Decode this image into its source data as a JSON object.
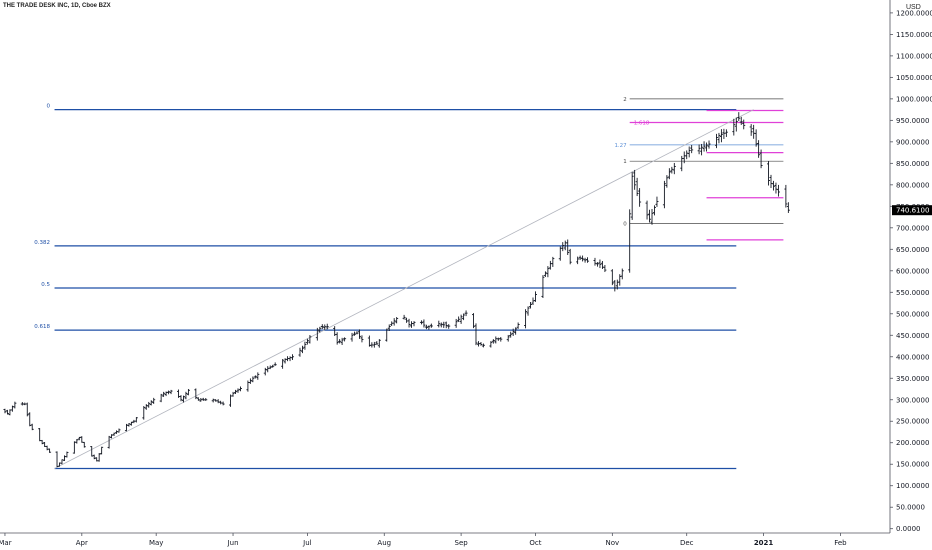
{
  "chart_data": {
    "type": "bar",
    "subtype": "ohlc",
    "title": "THE TRADE DESK INC, 1D, Cboe BZX",
    "currency": "USD",
    "last_price": "740.6100",
    "last_price_color": "#000000",
    "ylim": [
      -10,
      1230
    ],
    "y_ticks": [
      {
        "value": 0,
        "label": "0.0000"
      },
      {
        "value": 50,
        "label": "50.0000"
      },
      {
        "value": 100,
        "label": "100.0000"
      },
      {
        "value": 150,
        "label": "150.0000"
      },
      {
        "value": 200,
        "label": "200.0000"
      },
      {
        "value": 250,
        "label": "250.0000"
      },
      {
        "value": 300,
        "label": "300.0000"
      },
      {
        "value": 350,
        "label": "350.0000"
      },
      {
        "value": 400,
        "label": "400.0000"
      },
      {
        "value": 450,
        "label": "450.0000"
      },
      {
        "value": 500,
        "label": "500.0000"
      },
      {
        "value": 550,
        "label": "550.0000"
      },
      {
        "value": 600,
        "label": "600.0000"
      },
      {
        "value": 650,
        "label": "650.0000"
      },
      {
        "value": 700,
        "label": "700.0000"
      },
      {
        "value": 750,
        "label": "750.0000"
      },
      {
        "value": 800,
        "label": "800.0000"
      },
      {
        "value": 850,
        "label": "850.0000"
      },
      {
        "value": 900,
        "label": "900.0000"
      },
      {
        "value": 950,
        "label": "950.0000"
      },
      {
        "value": 1000,
        "label": "1000.0000"
      },
      {
        "value": 1050,
        "label": "1050.0000"
      },
      {
        "value": 1100,
        "label": "1100.0000"
      },
      {
        "value": 1150,
        "label": "1150.0000"
      },
      {
        "value": 1200,
        "label": "1200.0000"
      }
    ],
    "x_ticks": [
      {
        "day": 0,
        "label": "Mar"
      },
      {
        "day": 31,
        "label": "Apr"
      },
      {
        "day": 61,
        "label": "May"
      },
      {
        "day": 92,
        "label": "Jun"
      },
      {
        "day": 122,
        "label": "Jul"
      },
      {
        "day": 153,
        "label": "Aug"
      },
      {
        "day": 184,
        "label": "Sep"
      },
      {
        "day": 214,
        "label": "Oct"
      },
      {
        "day": 245,
        "label": "Nov"
      },
      {
        "day": 275,
        "label": "Dec"
      },
      {
        "day": 306,
        "label": "2021"
      },
      {
        "day": 337,
        "label": "Feb"
      }
    ],
    "xlim": [
      -2,
      357
    ],
    "series_color": "#131722",
    "keypoints": [
      [
        -2,
        280
      ],
      [
        1,
        268
      ],
      [
        4,
        292
      ],
      [
        8,
        290
      ],
      [
        10,
        240
      ],
      [
        14,
        205
      ],
      [
        18,
        178
      ],
      [
        21,
        145
      ],
      [
        24,
        168
      ],
      [
        27,
        196
      ],
      [
        30,
        212
      ],
      [
        33,
        180
      ],
      [
        37,
        158
      ],
      [
        40,
        205
      ],
      [
        44,
        222
      ],
      [
        48,
        238
      ],
      [
        52,
        250
      ],
      [
        56,
        282
      ],
      [
        60,
        300
      ],
      [
        64,
        315
      ],
      [
        68,
        322
      ],
      [
        71,
        300
      ],
      [
        74,
        322
      ],
      [
        78,
        300
      ],
      [
        84,
        300
      ],
      [
        88,
        290
      ],
      [
        92,
        315
      ],
      [
        96,
        330
      ],
      [
        100,
        350
      ],
      [
        104,
        368
      ],
      [
        108,
        378
      ],
      [
        112,
        392
      ],
      [
        116,
        400
      ],
      [
        120,
        420
      ],
      [
        124,
        455
      ],
      [
        128,
        470
      ],
      [
        132,
        470
      ],
      [
        134,
        433
      ],
      [
        138,
        445
      ],
      [
        142,
        455
      ],
      [
        146,
        425
      ],
      [
        150,
        430
      ],
      [
        153,
        455
      ],
      [
        156,
        478
      ],
      [
        160,
        500
      ],
      [
        163,
        475
      ],
      [
        167,
        485
      ],
      [
        170,
        468
      ],
      [
        175,
        477
      ],
      [
        180,
        470
      ],
      [
        184,
        493
      ],
      [
        188,
        510
      ],
      [
        190,
        432
      ],
      [
        194,
        425
      ],
      [
        198,
        442
      ],
      [
        202,
        440
      ],
      [
        206,
        465
      ],
      [
        210,
        505
      ],
      [
        213,
        530
      ],
      [
        216,
        575
      ],
      [
        219,
        605
      ],
      [
        222,
        640
      ],
      [
        226,
        665
      ],
      [
        228,
        620
      ],
      [
        232,
        630
      ],
      [
        236,
        620
      ],
      [
        240,
        615
      ],
      [
        243,
        595
      ],
      [
        246,
        560
      ],
      [
        249,
        600
      ],
      [
        251,
        645
      ],
      [
        253,
        820
      ],
      [
        256,
        760
      ],
      [
        260,
        720
      ],
      [
        264,
        775
      ],
      [
        268,
        830
      ],
      [
        272,
        855
      ],
      [
        276,
        880
      ],
      [
        280,
        885
      ],
      [
        284,
        895
      ],
      [
        288,
        915
      ],
      [
        292,
        925
      ],
      [
        296,
        955
      ],
      [
        299,
        930
      ],
      [
        302,
        920
      ],
      [
        305,
        845
      ],
      [
        308,
        810
      ],
      [
        311,
        790
      ],
      [
        314,
        770
      ],
      [
        316,
        741
      ]
    ],
    "trend_line": {
      "from": {
        "day": 20,
        "price": 140
      },
      "to": {
        "day": 302,
        "price": 975
      },
      "color": "#b2b5be"
    },
    "fib_retracement": {
      "color": "#1e4fa6",
      "x_start_day": 20,
      "x_end_day": 295,
      "levels": [
        {
          "label": "0",
          "price": 975
        },
        {
          "label": "0.382",
          "price": 658
        },
        {
          "label": "0.5",
          "price": 560
        },
        {
          "label": "0.618",
          "price": 462
        },
        {
          "label": "",
          "price": 140
        }
      ]
    },
    "fib_extension_gray": {
      "color": "#4a4a4a",
      "x_start_day": 252,
      "x_end_day": 314,
      "levels": [
        {
          "label": "2",
          "price": 1000
        },
        {
          "label": "1",
          "price": 855
        },
        {
          "label": "0",
          "price": 710
        }
      ]
    },
    "fib_extension_blue": {
      "color": "#5b8fd6",
      "x_start_day": 252,
      "x_end_day": 314,
      "levels": [
        {
          "label": "1.27",
          "price": 893
        }
      ]
    },
    "magenta_levels": {
      "color": "#e040d8",
      "lines": [
        {
          "label": "",
          "price": 973,
          "x_start_day": 283,
          "x_end_day": 314
        },
        {
          "label": "1.618",
          "price": 945,
          "x_start_day": 252,
          "x_end_day": 314
        },
        {
          "label": "",
          "price": 875,
          "x_start_day": 283,
          "x_end_day": 314
        },
        {
          "label": "",
          "price": 770,
          "x_start_day": 283,
          "x_end_day": 314
        },
        {
          "label": "",
          "price": 672,
          "x_start_day": 283,
          "x_end_day": 314
        }
      ]
    },
    "grid": false,
    "legend": "none"
  }
}
